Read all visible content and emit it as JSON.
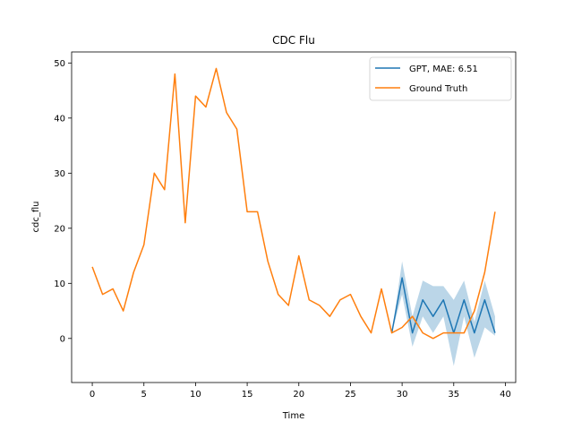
{
  "chart_data": {
    "type": "line",
    "title": "CDC Flu",
    "xlabel": "Time",
    "ylabel": "cdc_flu",
    "xlim": [
      -2,
      41
    ],
    "ylim": [
      -8,
      52
    ],
    "xticks": [
      0,
      5,
      10,
      15,
      20,
      25,
      30,
      35,
      40
    ],
    "yticks": [
      0,
      10,
      20,
      30,
      40,
      50
    ],
    "grid": false,
    "legend_position": "top-right",
    "series": [
      {
        "name": "GPT, MAE: 6.51",
        "color": "#1f77b4",
        "x": [
          29,
          30,
          31,
          32,
          33,
          34,
          35,
          36,
          37,
          38,
          39
        ],
        "y": [
          1,
          11,
          1,
          7,
          4,
          7,
          1,
          7,
          1,
          7,
          1
        ],
        "band_lower": [
          1,
          8,
          -1.5,
          4,
          1,
          4,
          -5,
          4,
          -3.5,
          2,
          0.5
        ],
        "band_upper": [
          1,
          14,
          4,
          10.5,
          9.5,
          9.5,
          7,
          10.5,
          3,
          10.5,
          4
        ],
        "band_color": "#1f77b4"
      },
      {
        "name": "Ground Truth",
        "color": "#ff7f0e",
        "x": [
          0,
          1,
          2,
          3,
          4,
          5,
          6,
          7,
          8,
          9,
          10,
          11,
          12,
          13,
          14,
          15,
          16,
          17,
          18,
          19,
          20,
          21,
          22,
          23,
          24,
          25,
          26,
          27,
          28,
          29,
          30,
          31,
          32,
          33,
          34,
          35,
          36,
          37,
          38,
          39
        ],
        "y": [
          13,
          8,
          9,
          5,
          12,
          17,
          30,
          27,
          48,
          21,
          44,
          42,
          49,
          41,
          38,
          23,
          23,
          14,
          8,
          6,
          15,
          7,
          6,
          4,
          7,
          8,
          4,
          1,
          9,
          1,
          2,
          4,
          1,
          0,
          1,
          1,
          1,
          5,
          12,
          23
        ]
      }
    ]
  }
}
